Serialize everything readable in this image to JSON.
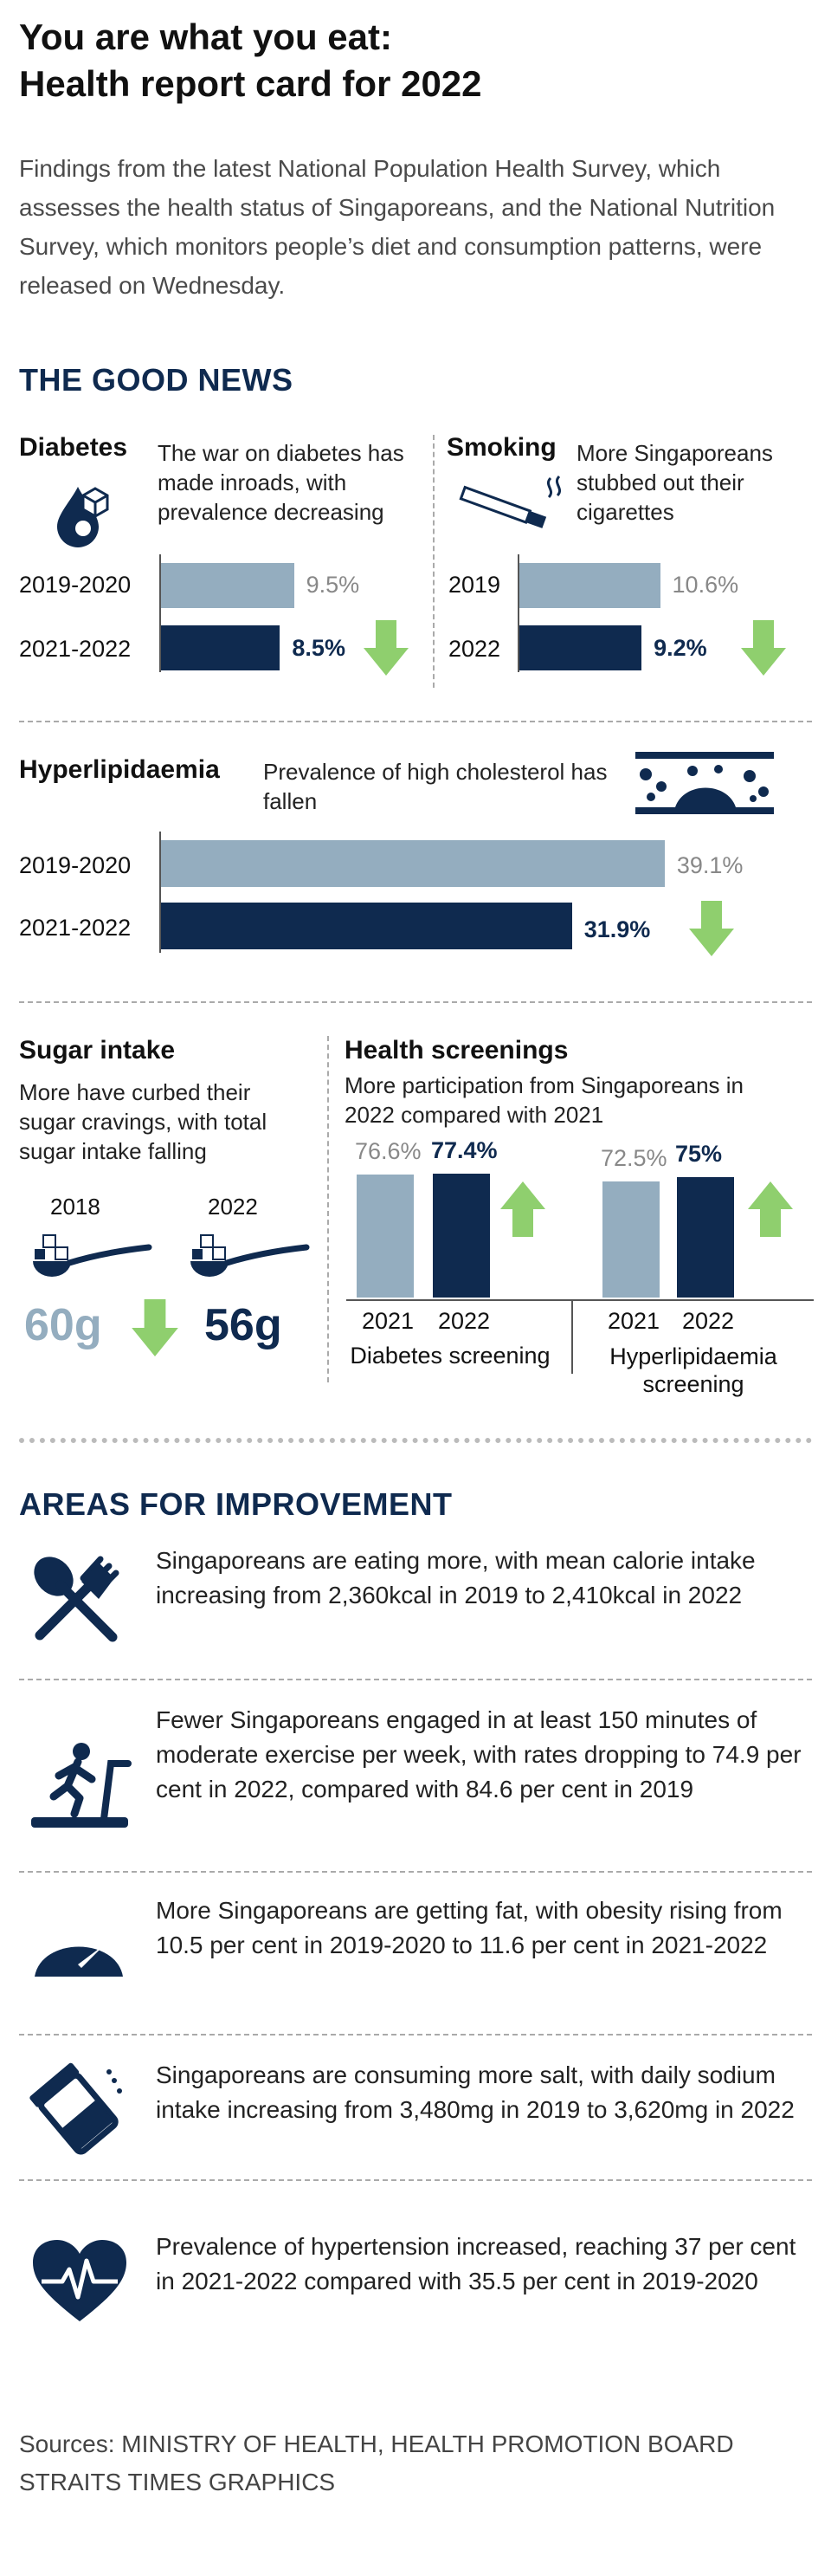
{
  "title_line1": "You are what you eat:",
  "title_line2": "Health report card for 2022",
  "intro": "Findings from the latest National Population Health Survey, which assesses the health status of Singaporeans, and the National Nutrition Survey, which monitors people’s diet and consumption patterns, were released on Wednesday.",
  "good_news_heading": "THE GOOD NEWS",
  "diabetes": {
    "title": "Diabetes",
    "desc": "The war on diabetes has made inroads, with prevalence decreasing"
  },
  "smoking": {
    "title": "Smoking",
    "desc": "More Singaporeans stubbed out their cigarettes"
  },
  "hyperlipidaemia": {
    "title": "Hyperlipidaemia",
    "desc": "Prevalence of high cholesterol has fallen"
  },
  "sugar": {
    "title": "Sugar intake",
    "desc": "More have curbed their sugar cravings, with total sugar intake falling",
    "year_old": "2018",
    "year_new": "2022",
    "value_old": "60g",
    "value_new": "56g"
  },
  "screenings": {
    "title": "Health screenings",
    "desc": "More participation from Singaporeans in 2022 compared with 2021",
    "diabetes_label": "Diabetes screening",
    "hyper_label_line1": "Hyperlipidaemia",
    "hyper_label_line2": "screening"
  },
  "chart_data": [
    {
      "type": "bar",
      "orientation": "horizontal",
      "title": "Diabetes",
      "categories": [
        "2019-2020",
        "2021-2022"
      ],
      "values": [
        9.5,
        8.5
      ],
      "labels": [
        "9.5%",
        "8.5%"
      ],
      "unit": "%",
      "xlim": [
        0,
        12
      ]
    },
    {
      "type": "bar",
      "orientation": "horizontal",
      "title": "Smoking",
      "categories": [
        "2019",
        "2022"
      ],
      "values": [
        10.6,
        9.2
      ],
      "labels": [
        "10.6%",
        "9.2%"
      ],
      "unit": "%",
      "xlim": [
        0,
        12
      ]
    },
    {
      "type": "bar",
      "orientation": "horizontal",
      "title": "Hyperlipidaemia",
      "categories": [
        "2019-2020",
        "2021-2022"
      ],
      "values": [
        39.1,
        31.9
      ],
      "labels": [
        "39.1%",
        "31.9%"
      ],
      "unit": "%",
      "xlim": [
        0,
        42
      ]
    },
    {
      "type": "bar",
      "orientation": "vertical",
      "title": "Diabetes screening",
      "categories": [
        "2021",
        "2022"
      ],
      "values": [
        76.6,
        77.4
      ],
      "labels": [
        "76.6%",
        "77.4%"
      ],
      "unit": "%",
      "ylim": [
        0,
        100
      ]
    },
    {
      "type": "bar",
      "orientation": "vertical",
      "title": "Hyperlipidaemia screening",
      "categories": [
        "2021",
        "2022"
      ],
      "values": [
        72.5,
        75
      ],
      "labels": [
        "72.5%",
        "75%"
      ],
      "unit": "%",
      "ylim": [
        0,
        100
      ]
    },
    {
      "type": "table",
      "title": "Sugar intake",
      "categories": [
        "2018",
        "2022"
      ],
      "values": [
        60,
        56
      ],
      "unit": "g"
    }
  ],
  "improvement_heading": "AREAS FOR IMPROVEMENT",
  "improvements": [
    {
      "text": "Singaporeans are eating more, with mean calorie intake increasing from 2,360kcal in 2019 to 2,410kcal in 2022",
      "icon": "fork-spoon-icon"
    },
    {
      "text": "Fewer Singaporeans engaged in at least 150 minutes of moderate exercise per week, with rates dropping to 74.9 per cent in 2022, compared with 84.6 per cent in 2019",
      "icon": "treadmill-icon"
    },
    {
      "text": "More Singaporeans are getting fat, with obesity rising from 10.5 per cent in 2019-2020 to 11.6 per cent in 2021-2022",
      "icon": "scale-icon"
    },
    {
      "text": "Singaporeans are consuming more salt, with daily sodium intake increasing from 3,480mg in 2019 to 3,620mg in 2022",
      "icon": "salt-shaker-icon"
    },
    {
      "text": "Prevalence of hypertension increased, reaching 37 per cent in 2021-2022 compared with 35.5 per cent in 2019-2020",
      "icon": "heart-pulse-icon"
    }
  ],
  "sources_line1": "Sources: MINISTRY OF HEALTH, HEALTH PROMOTION BOARD",
  "sources_line2": "STRAITS TIMES GRAPHICS",
  "colors": {
    "navy": "#0f2a4f",
    "grey_blue": "#94adbf",
    "green": "#8fcf6e"
  }
}
